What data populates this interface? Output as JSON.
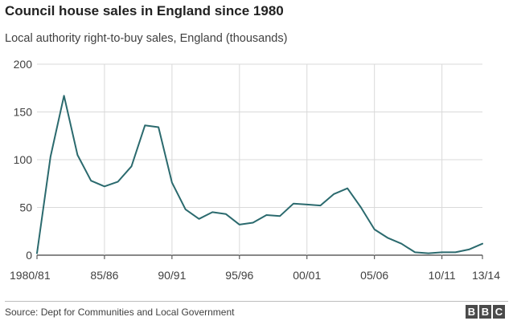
{
  "header": {
    "title": "Council house sales in England since 1980",
    "subtitle": "Local authority right-to-buy sales, England (thousands)"
  },
  "footer": {
    "source": "Source: Dept for Communities and Local Government",
    "logo_letters": [
      "B",
      "B",
      "C"
    ]
  },
  "colors": {
    "line": "#2b6a6e",
    "grid": "#d9d9d9",
    "axis": "#404040"
  },
  "chart_data": {
    "type": "line",
    "title": "Council house sales in England since 1980",
    "subtitle": "Local authority right-to-buy sales, England (thousands)",
    "xlabel": "",
    "ylabel": "",
    "ylim": [
      0,
      200
    ],
    "yticks": [
      0,
      50,
      100,
      150,
      200
    ],
    "grid": true,
    "x": [
      "1980/81",
      "1981/82",
      "1982/83",
      "1983/84",
      "1984/85",
      "1985/86",
      "1986/87",
      "1987/88",
      "1988/89",
      "1989/90",
      "1990/91",
      "1991/92",
      "1992/93",
      "1993/94",
      "1994/95",
      "1995/96",
      "1996/97",
      "1997/98",
      "1998/99",
      "1999/00",
      "2000/01",
      "2001/02",
      "2002/03",
      "2003/04",
      "2004/05",
      "2005/06",
      "2006/07",
      "2007/08",
      "2008/09",
      "2009/10",
      "2010/11",
      "2011/12",
      "2012/13",
      "2013/14"
    ],
    "xtick_labels": [
      "1980/81",
      "85/86",
      "90/91",
      "95/96",
      "00/01",
      "05/06",
      "10/11",
      "13/14"
    ],
    "xtick_index": [
      0,
      5,
      10,
      15,
      20,
      25,
      30,
      33
    ],
    "series": [
      {
        "values": [
          2,
          103,
          167,
          105,
          78,
          72,
          77,
          93,
          136,
          134,
          76,
          48,
          38,
          45,
          43,
          32,
          34,
          42,
          41,
          54,
          53,
          52,
          64,
          70,
          50,
          27,
          18,
          12,
          3,
          2,
          3,
          3,
          6,
          12
        ]
      }
    ]
  }
}
